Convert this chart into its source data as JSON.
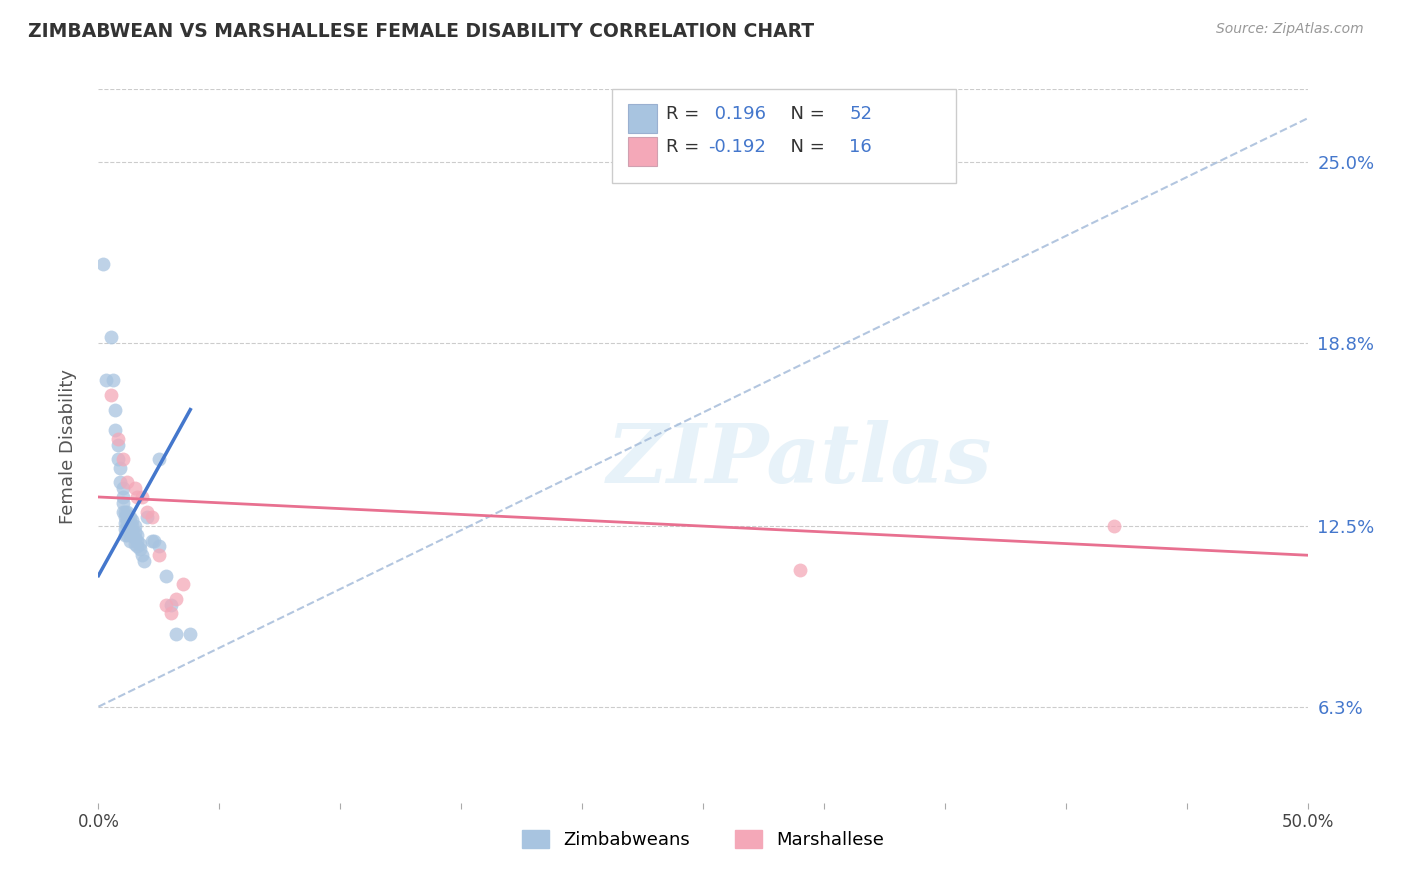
{
  "title": "ZIMBABWEAN VS MARSHALLESE FEMALE DISABILITY CORRELATION CHART",
  "source": "Source: ZipAtlas.com",
  "ylabel": "Female Disability",
  "yticks": [
    0.063,
    0.125,
    0.188,
    0.25
  ],
  "ytick_labels": [
    "6.3%",
    "12.5%",
    "18.8%",
    "25.0%"
  ],
  "xlim": [
    0.0,
    0.5
  ],
  "ylim": [
    0.03,
    0.275
  ],
  "zimbabwe_color": "#a8c4e0",
  "marshallese_color": "#f4a8b8",
  "zimbabwe_line_color": "#4477cc",
  "marshallese_line_color": "#e87090",
  "dashed_line_color": "#a0b8d8",
  "R_zimbabwe": 0.196,
  "R_marshallese": -0.192,
  "N_zimbabwe": 52,
  "N_marshallese": 16,
  "watermark": "ZIPatlas",
  "background_color": "#ffffff",
  "zimbabwe_x": [
    0.002,
    0.003,
    0.005,
    0.006,
    0.007,
    0.007,
    0.008,
    0.008,
    0.009,
    0.009,
    0.01,
    0.01,
    0.01,
    0.01,
    0.011,
    0.011,
    0.011,
    0.011,
    0.011,
    0.012,
    0.012,
    0.012,
    0.012,
    0.012,
    0.013,
    0.013,
    0.013,
    0.013,
    0.013,
    0.014,
    0.014,
    0.014,
    0.015,
    0.015,
    0.015,
    0.015,
    0.016,
    0.016,
    0.016,
    0.017,
    0.017,
    0.018,
    0.019,
    0.02,
    0.022,
    0.023,
    0.025,
    0.025,
    0.028,
    0.03,
    0.032,
    0.038
  ],
  "zimbabwe_y": [
    0.215,
    0.175,
    0.19,
    0.175,
    0.165,
    0.158,
    0.153,
    0.148,
    0.145,
    0.14,
    0.138,
    0.135,
    0.133,
    0.13,
    0.13,
    0.128,
    0.126,
    0.124,
    0.122,
    0.13,
    0.128,
    0.126,
    0.124,
    0.122,
    0.128,
    0.126,
    0.124,
    0.122,
    0.12,
    0.127,
    0.125,
    0.123,
    0.125,
    0.123,
    0.121,
    0.119,
    0.122,
    0.12,
    0.118,
    0.119,
    0.117,
    0.115,
    0.113,
    0.128,
    0.12,
    0.12,
    0.148,
    0.118,
    0.108,
    0.098,
    0.088,
    0.088
  ],
  "marshallese_x": [
    0.005,
    0.008,
    0.01,
    0.012,
    0.015,
    0.016,
    0.018,
    0.02,
    0.022,
    0.025,
    0.028,
    0.03,
    0.032,
    0.035,
    0.29,
    0.42
  ],
  "marshallese_y": [
    0.17,
    0.155,
    0.148,
    0.14,
    0.138,
    0.135,
    0.135,
    0.13,
    0.128,
    0.115,
    0.098,
    0.095,
    0.1,
    0.105,
    0.11,
    0.125
  ],
  "zim_trend_x0": 0.0,
  "zim_trend_y0": 0.108,
  "zim_trend_x1": 0.038,
  "zim_trend_y1": 0.165,
  "marsh_trend_x0": 0.0,
  "marsh_trend_y0": 0.135,
  "marsh_trend_x1": 0.5,
  "marsh_trend_y1": 0.115,
  "dash_trend_x0": 0.0,
  "dash_trend_y0": 0.063,
  "dash_trend_x1": 0.5,
  "dash_trend_y1": 0.265
}
